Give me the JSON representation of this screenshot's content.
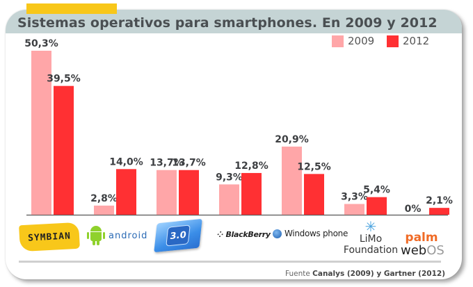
{
  "chart_data": {
    "type": "bar",
    "title": "Sistemas operativos para smartphones. En 2009 y 2012",
    "xlabel": "",
    "ylabel": "",
    "ylim": [
      0,
      50.3
    ],
    "grid": false,
    "legend_position": "top-right",
    "categories": [
      "Symbian",
      "Android",
      "iPhone OS 3.0",
      "BlackBerry",
      "Windows phone",
      "LiMo Foundation",
      "palm webOS"
    ],
    "series": [
      {
        "name": "2009",
        "color": "#ffa6a8",
        "values": [
          50.3,
          2.8,
          13.7,
          9.3,
          20.9,
          3.3,
          0
        ],
        "labels": [
          "50,3%",
          "2,8%",
          "13,7%",
          "9,3%",
          "20,9%",
          "3,3%",
          "0%"
        ]
      },
      {
        "name": "2012",
        "color": "#ff3033",
        "values": [
          39.5,
          14.0,
          13.7,
          12.8,
          12.5,
          5.4,
          2.1
        ],
        "labels": [
          "39,5%",
          "14,0%",
          "13,7%",
          "12,8%",
          "12,5%",
          "5,4%",
          "2,1%"
        ]
      }
    ],
    "source_prefix": "Fuente",
    "source": "Canalys (2009) y Gartner (2012)"
  },
  "colors": {
    "accent": "#f8c71a",
    "title_band": "#c5d4d5",
    "bar_2009": "#ffa6a8",
    "bar_2012": "#ff3033"
  },
  "logos": {
    "symbian": "SYMBIAN",
    "android": "android",
    "ios": "3.0",
    "blackberry": "BlackBerry",
    "windows": "Windows phone",
    "limo_line1": "LiMo",
    "limo_line2": "Foundation",
    "palm_line1": "palm",
    "palm_web": "web",
    "palm_os": "OS"
  }
}
